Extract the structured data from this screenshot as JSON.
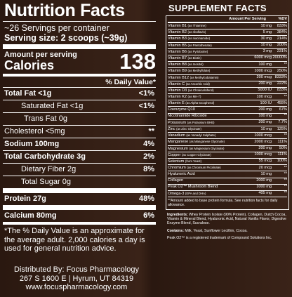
{
  "nutrition": {
    "title": "Nutrition Facts",
    "servings": "~26 Servings per container",
    "serving_size": "Serving size: 2 scoops (~39g)",
    "amount_per_serving": "Amount per serving",
    "calories_label": "Calories",
    "calories_value": "138",
    "dv_header": "% Daily Value*",
    "rows": [
      {
        "label": "Total Fat <1g",
        "dv": "<1%"
      },
      {
        "label": "Saturated Fat <1g",
        "dv": "<1%"
      },
      {
        "label": "Trans Fat 0g",
        "dv": ""
      },
      {
        "label": "Cholesterol <5mg",
        "dv": "**"
      },
      {
        "label": "Sodium 100mg",
        "dv": "4%"
      },
      {
        "label": "Total Carbohydrate 3g",
        "dv": "2%"
      },
      {
        "label": "Dietary Fiber 2g",
        "dv": "8%"
      },
      {
        "label": "Total Sugar 0g",
        "dv": ""
      },
      {
        "label": "Protein 27g",
        "dv": "48%"
      },
      {
        "label": "Calcium 80mg",
        "dv": "6%"
      }
    ],
    "footnote": "*The % Daily Value is an approximate for the average adult. 2,000 calories a day is used for general nutrition advice.",
    "distributor": [
      "Distributed By: Focus Pharmacology",
      "267 S 1600 E | Hyrum, UT 84319",
      "www.focuspharmacology.com"
    ]
  },
  "supplement": {
    "title": "SUPPLEMENT FACTS",
    "head_amount": "Amount Per Serving",
    "head_dv": "%DV",
    "rows": [
      {
        "name": "Vitamin B1",
        "sub": "(as Thiamine)",
        "amount": "10 mg",
        "dv": "833%"
      },
      {
        "name": "Vitamin B2",
        "sub": "(as riboflavin)",
        "amount": "5 mg",
        "dv": "384%"
      },
      {
        "name": "Vitamin B3",
        "sub": "(as niacinamide)",
        "amount": "30 mg",
        "dv": "214%"
      },
      {
        "name": "Vitamin B5",
        "sub": "(as Pantothenate)",
        "amount": "10 mg",
        "dv": "200%"
      },
      {
        "name": "Vitamin B6",
        "sub": "(as Pyridoxine)",
        "amount": "3 mg",
        "dv": "231%"
      },
      {
        "name": "Vitamin B7",
        "sub": "(as Biotin)",
        "amount": "6000 mcg",
        "dv": "20000%"
      },
      {
        "name": "Vitamin B8",
        "sub": "(as Inositol)",
        "amount": "100 mg",
        "dv": "**"
      },
      {
        "name": "Vitamin B9",
        "sub": "(as Methylfolate)",
        "amount": "1000 mcg",
        "dv": "250%"
      },
      {
        "name": "Vitamin B12",
        "sub": "(as Methylcobalamin)",
        "amount": "200 mcg",
        "dv": "8333%"
      },
      {
        "name": "Vitamin C",
        "sub": "(as Ascorbic Acid)",
        "amount": "200 mg",
        "dv": "222%"
      },
      {
        "name": "Vitamin D3",
        "sub": "(as Cholecalciferol)",
        "amount": "5000 IU",
        "dv": "833%"
      },
      {
        "name": "Vitamin K2",
        "sub": "(as MK-7)",
        "amount": "100 mcg",
        "dv": "**"
      },
      {
        "name": "Vitamin E",
        "sub": "(as Alpha-tocopherol)",
        "amount": "100 IU",
        "dv": "455%"
      },
      {
        "name": "Coenzyme Q10",
        "sub": "",
        "amount": "200 mg",
        "dv": "67%"
      },
      {
        "name": "Nicotinamide Riboside",
        "sub": "",
        "amount": "100 mg",
        "dv": "**"
      },
      {
        "name": "Potassium",
        "sub": "(as Potassium BHB)",
        "amount": "200 mg",
        "dv": "7.7%"
      },
      {
        "name": "Zinc",
        "sub": "(as Zinc Glycinate)",
        "amount": "10 mg",
        "dv": "125%"
      },
      {
        "name": "Vanadium",
        "sub": "(as Vanadyl Sulphate)",
        "amount": "1000 mcg",
        "dv": "**"
      },
      {
        "name": "Manganese",
        "sub": "(as Manganese Glycinate)",
        "amount": "2000 mcg",
        "dv": "111%"
      },
      {
        "name": "Magnesium",
        "sub": "(as Magnesium Glycinate)",
        "amount": "200 mg",
        "dv": "50%"
      },
      {
        "name": "Copper",
        "sub": "(as Copper Glycinate)",
        "amount": "1000 mcg",
        "dv": "111%"
      },
      {
        "name": "Selenium",
        "sub": "(from Yeast)",
        "amount": "55 mcg",
        "dv": "100%"
      },
      {
        "name": "Chromium",
        "sub": "(as Chromium Picolinate)",
        "amount": "20 mcg",
        "dv": "**"
      },
      {
        "name": "Hyaluronic Acid",
        "sub": "",
        "amount": "10 mg",
        "dv": "**"
      },
      {
        "name": "Collagen",
        "sub": "",
        "amount": "2000 mg",
        "dv": "**"
      },
      {
        "name": "Peak O2™ Mushroom Blend",
        "sub": "",
        "amount": "1000 mg",
        "dv": "**"
      },
      {
        "name": "Omega-3",
        "sub": "(EPA and DHA)",
        "amount": "405 mg",
        "dv": "**"
      }
    ],
    "note": "**Amount added to base protein formula. See nutrition facts for daily allowance.",
    "ingredients_label": "Ingredients:",
    "ingredients": " Whey Protein Isolate (90% Protein), Collagen, Dutch Cocoa, Vitamin & Mineral Blend, Hyaluronic Acid, Natural Vanilla Flavor, Digestive Enzyme Blend, Sucralose.",
    "contains_label": "Contains:",
    "contains": " Milk, Yeast, Sunflower Lecithin, Cocoa.",
    "trademark": "Peak O2™ is a registered trademark of Compound Solutions Inc."
  }
}
